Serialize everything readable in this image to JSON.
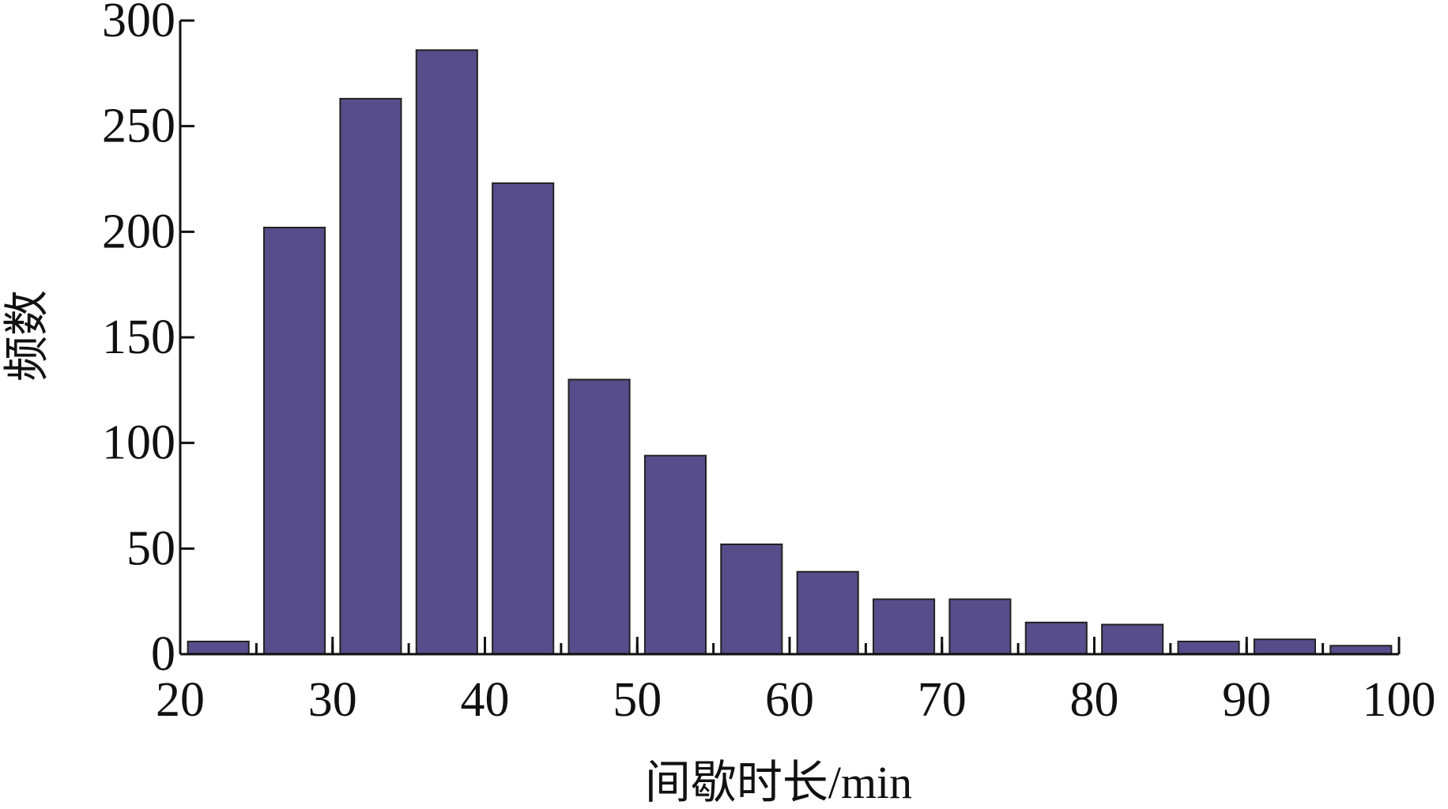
{
  "chart_data": {
    "type": "histogram",
    "xlabel": "间歇时长/min",
    "ylabel": "频数",
    "bins": [
      20,
      25,
      30,
      35,
      40,
      45,
      50,
      55,
      60,
      65,
      70,
      75,
      80,
      85,
      90,
      95,
      100
    ],
    "values": [
      6,
      202,
      263,
      286,
      223,
      130,
      94,
      52,
      39,
      26,
      26,
      15,
      14,
      6,
      7,
      4
    ],
    "color": "#574d8a",
    "xlim": [
      20,
      100
    ],
    "xticks": [
      20,
      30,
      40,
      50,
      60,
      70,
      80,
      90,
      100
    ],
    "ylim": [
      0,
      300
    ],
    "yticks": [
      0,
      50,
      100,
      150,
      200,
      250,
      300
    ]
  }
}
